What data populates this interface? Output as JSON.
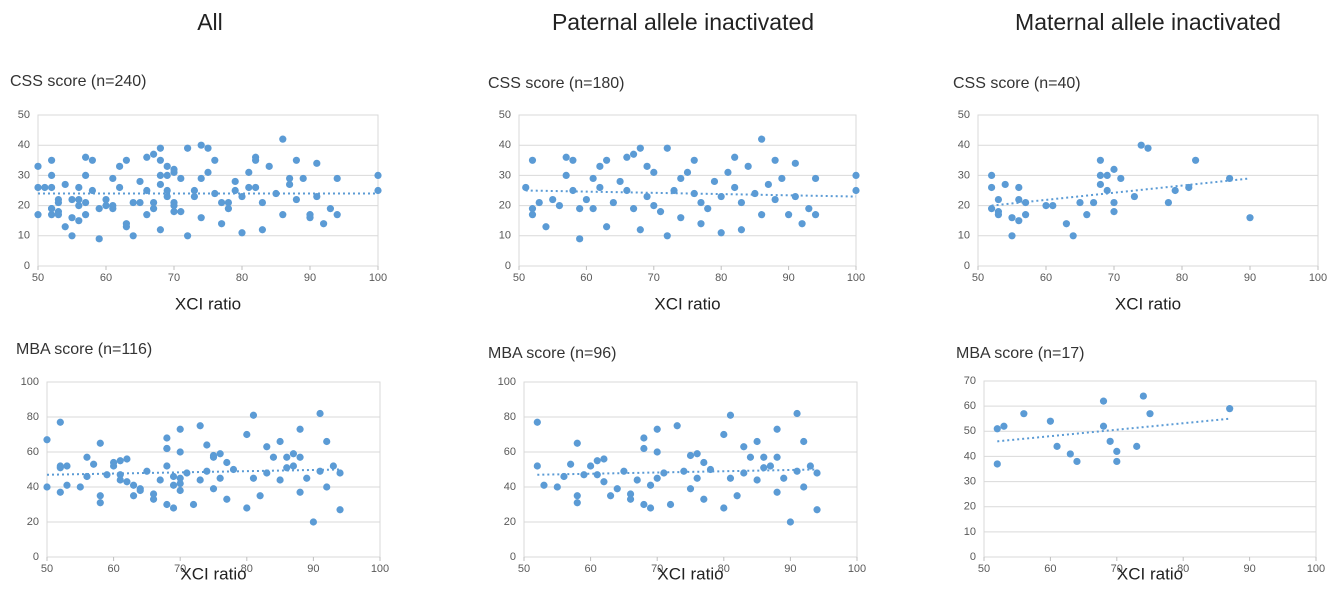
{
  "headers": [
    "All",
    "Paternal allele inactivated",
    "Maternal allele inactivated"
  ],
  "chart_data": [
    {
      "type": "scatter",
      "subtitle": "CSS score (n=240)",
      "xlabel": "XCI ratio",
      "color": "#5b9bd5",
      "grid": true,
      "xlim": [
        50,
        100
      ],
      "xticks": [
        50,
        60,
        70,
        80,
        90,
        100
      ],
      "ylim": [
        0,
        50
      ],
      "yticks": [
        0,
        10,
        20,
        30,
        40,
        50
      ],
      "x": [
        50,
        50,
        50,
        51,
        52,
        52,
        52,
        53,
        54,
        55,
        56,
        57,
        57,
        58,
        58,
        59,
        59,
        60,
        61,
        61,
        62,
        62,
        63,
        63,
        64,
        65,
        66,
        66,
        67,
        67,
        68,
        68,
        69,
        69,
        70,
        70,
        71,
        72,
        72,
        73,
        74,
        74,
        75,
        76,
        76,
        77,
        77,
        78,
        79,
        80,
        80,
        81,
        82,
        82,
        83,
        83,
        84,
        85,
        86,
        86,
        87,
        88,
        88,
        89,
        90,
        91,
        91,
        92,
        93,
        94,
        94,
        100,
        100,
        52,
        52,
        52,
        53,
        53,
        53,
        54,
        55,
        55,
        56,
        56,
        56,
        57,
        57,
        60,
        61,
        63,
        64,
        65,
        66,
        67,
        68,
        68,
        68,
        69,
        69,
        70,
        70,
        70,
        71,
        73,
        74,
        75,
        78,
        79,
        81,
        82,
        87,
        90
      ],
      "y": [
        33,
        26,
        17,
        26,
        35,
        17,
        19,
        21,
        13,
        22,
        20,
        36,
        30,
        35,
        25,
        9,
        19,
        22,
        29,
        19,
        33,
        26,
        35,
        13,
        21,
        28,
        36,
        25,
        37,
        19,
        39,
        12,
        33,
        23,
        31,
        20,
        18,
        39,
        10,
        25,
        29,
        16,
        31,
        24,
        35,
        21,
        14,
        19,
        28,
        11,
        23,
        31,
        26,
        36,
        12,
        21,
        33,
        24,
        42,
        17,
        27,
        35,
        22,
        29,
        17,
        34,
        23,
        14,
        19,
        29,
        17,
        30,
        25,
        26,
        30,
        19,
        22,
        18,
        17,
        27,
        16,
        10,
        26,
        22,
        15,
        17,
        21,
        20,
        20,
        14,
        10,
        21,
        17,
        21,
        35,
        30,
        27,
        25,
        30,
        32,
        21,
        18,
        29,
        23,
        40,
        39,
        21,
        25,
        26,
        35,
        29,
        16
      ],
      "trendline": {
        "x": [
          50,
          100
        ],
        "y": [
          24,
          24
        ]
      }
    },
    {
      "type": "scatter",
      "subtitle": "CSS score (n=180)",
      "xlabel": "XCI ratio",
      "color": "#5b9bd5",
      "grid": true,
      "xlim": [
        50,
        100
      ],
      "xticks": [
        50,
        60,
        70,
        80,
        90,
        100
      ],
      "ylim": [
        0,
        50
      ],
      "yticks": [
        0,
        10,
        20,
        30,
        40,
        50
      ],
      "x": [
        51,
        52,
        52,
        52,
        53,
        54,
        55,
        56,
        57,
        57,
        58,
        58,
        59,
        59,
        60,
        61,
        61,
        62,
        62,
        63,
        63,
        64,
        65,
        66,
        66,
        67,
        67,
        68,
        68,
        69,
        69,
        70,
        70,
        71,
        72,
        72,
        73,
        74,
        74,
        75,
        76,
        76,
        77,
        77,
        78,
        79,
        80,
        80,
        81,
        82,
        82,
        83,
        83,
        84,
        85,
        86,
        86,
        87,
        88,
        88,
        89,
        90,
        91,
        91,
        92,
        93,
        94,
        94,
        100,
        100
      ],
      "y": [
        26,
        35,
        17,
        19,
        21,
        13,
        22,
        20,
        36,
        30,
        35,
        25,
        9,
        19,
        22,
        29,
        19,
        33,
        26,
        35,
        13,
        21,
        28,
        36,
        25,
        37,
        19,
        39,
        12,
        33,
        23,
        31,
        20,
        18,
        39,
        10,
        25,
        29,
        16,
        31,
        24,
        35,
        21,
        14,
        19,
        28,
        11,
        23,
        31,
        26,
        36,
        12,
        21,
        33,
        24,
        42,
        17,
        27,
        35,
        22,
        29,
        17,
        34,
        23,
        14,
        19,
        29,
        17,
        30,
        25
      ],
      "trendline": {
        "x": [
          51,
          100
        ],
        "y": [
          25,
          23
        ]
      }
    },
    {
      "type": "scatter",
      "subtitle": "CSS score (n=40)",
      "xlabel": "XCI ratio",
      "color": "#5b9bd5",
      "grid": true,
      "xlim": [
        50,
        100
      ],
      "xticks": [
        50,
        60,
        70,
        80,
        90,
        100
      ],
      "ylim": [
        0,
        50
      ],
      "yticks": [
        0,
        10,
        20,
        30,
        40,
        50
      ],
      "x": [
        52,
        52,
        52,
        53,
        53,
        53,
        54,
        55,
        55,
        56,
        56,
        56,
        57,
        57,
        60,
        61,
        63,
        64,
        65,
        66,
        67,
        68,
        68,
        68,
        69,
        69,
        70,
        70,
        70,
        71,
        73,
        74,
        75,
        78,
        79,
        81,
        82,
        87,
        90
      ],
      "y": [
        26,
        30,
        19,
        22,
        18,
        17,
        27,
        16,
        10,
        26,
        22,
        15,
        17,
        21,
        20,
        20,
        14,
        10,
        21,
        17,
        21,
        35,
        30,
        27,
        25,
        30,
        32,
        21,
        18,
        29,
        23,
        40,
        39,
        21,
        25,
        26,
        35,
        29,
        16
      ],
      "trendline": {
        "x": [
          52,
          90
        ],
        "y": [
          20,
          29
        ]
      }
    },
    {
      "type": "scatter",
      "subtitle": "MBA score (n=116)",
      "xlabel": "XCI ratio",
      "color": "#5b9bd5",
      "grid": true,
      "xlim": [
        50,
        100
      ],
      "xticks": [
        50,
        60,
        70,
        80,
        90,
        100
      ],
      "ylim": [
        0,
        100
      ],
      "yticks": [
        0,
        20,
        40,
        60,
        80,
        100
      ],
      "x": [
        50,
        50,
        52,
        52,
        53,
        55,
        56,
        57,
        58,
        58,
        58,
        59,
        60,
        61,
        61,
        62,
        62,
        63,
        64,
        65,
        66,
        66,
        67,
        68,
        68,
        68,
        69,
        69,
        70,
        70,
        70,
        71,
        72,
        73,
        74,
        75,
        75,
        76,
        76,
        77,
        77,
        78,
        80,
        80,
        81,
        81,
        82,
        83,
        83,
        84,
        85,
        85,
        86,
        86,
        87,
        88,
        88,
        88,
        89,
        90,
        91,
        91,
        92,
        92,
        93,
        94,
        94,
        52,
        52,
        53,
        56,
        60,
        61,
        63,
        64,
        68,
        68,
        69,
        70,
        70,
        73,
        74,
        75,
        87
      ],
      "y": [
        67,
        40,
        77,
        52,
        41,
        40,
        46,
        53,
        65,
        35,
        31,
        47,
        52,
        55,
        47,
        56,
        43,
        35,
        39,
        49,
        36,
        33,
        44,
        68,
        62,
        30,
        41,
        28,
        73,
        60,
        45,
        48,
        30,
        75,
        49,
        58,
        39,
        59,
        45,
        54,
        33,
        50,
        70,
        28,
        81,
        45,
        35,
        63,
        48,
        57,
        66,
        44,
        57,
        51,
        52,
        57,
        73,
        37,
        45,
        20,
        82,
        49,
        66,
        40,
        52,
        48,
        27,
        51,
        37,
        52,
        57,
        54,
        44,
        41,
        38,
        62,
        52,
        46,
        42,
        38,
        44,
        64,
        57,
        59
      ],
      "trendline": {
        "x": [
          50,
          94
        ],
        "y": [
          47,
          50
        ]
      }
    },
    {
      "type": "scatter",
      "subtitle": "MBA score (n=96)",
      "xlabel": "XCI ratio",
      "color": "#5b9bd5",
      "grid": true,
      "xlim": [
        50,
        100
      ],
      "xticks": [
        50,
        60,
        70,
        80,
        90,
        100
      ],
      "ylim": [
        0,
        100
      ],
      "yticks": [
        0,
        20,
        40,
        60,
        80,
        100
      ],
      "x": [
        52,
        52,
        53,
        55,
        56,
        57,
        58,
        58,
        58,
        59,
        60,
        61,
        61,
        62,
        62,
        63,
        64,
        65,
        66,
        66,
        67,
        68,
        68,
        68,
        69,
        69,
        70,
        70,
        70,
        71,
        72,
        73,
        74,
        75,
        75,
        76,
        76,
        77,
        77,
        78,
        80,
        80,
        81,
        81,
        82,
        83,
        83,
        84,
        85,
        85,
        86,
        86,
        87,
        88,
        88,
        88,
        89,
        90,
        91,
        91,
        92,
        92,
        93,
        94,
        94
      ],
      "y": [
        77,
        52,
        41,
        40,
        46,
        53,
        65,
        35,
        31,
        47,
        52,
        55,
        47,
        56,
        43,
        35,
        39,
        49,
        36,
        33,
        44,
        68,
        62,
        30,
        41,
        28,
        73,
        60,
        45,
        48,
        30,
        75,
        49,
        58,
        39,
        59,
        45,
        54,
        33,
        50,
        70,
        28,
        81,
        45,
        35,
        63,
        48,
        57,
        66,
        44,
        57,
        51,
        52,
        57,
        73,
        37,
        45,
        20,
        82,
        49,
        66,
        40,
        52,
        48,
        27
      ],
      "trendline": {
        "x": [
          52,
          94
        ],
        "y": [
          47,
          50
        ]
      }
    },
    {
      "type": "scatter",
      "subtitle": "MBA score (n=17)",
      "xlabel": "XCI ratio",
      "color": "#5b9bd5",
      "grid": true,
      "xlim": [
        50,
        100
      ],
      "xticks": [
        50,
        60,
        70,
        80,
        90,
        100
      ],
      "ylim": [
        0,
        70
      ],
      "yticks": [
        0,
        10,
        20,
        30,
        40,
        50,
        60,
        70
      ],
      "x": [
        52,
        52,
        53,
        56,
        60,
        61,
        63,
        64,
        68,
        68,
        69,
        70,
        70,
        73,
        74,
        75,
        87
      ],
      "y": [
        51,
        37,
        52,
        57,
        54,
        44,
        41,
        38,
        62,
        52,
        46,
        42,
        38,
        44,
        64,
        57,
        59
      ],
      "trendline": {
        "x": [
          52,
          87
        ],
        "y": [
          46,
          55
        ]
      }
    }
  ]
}
